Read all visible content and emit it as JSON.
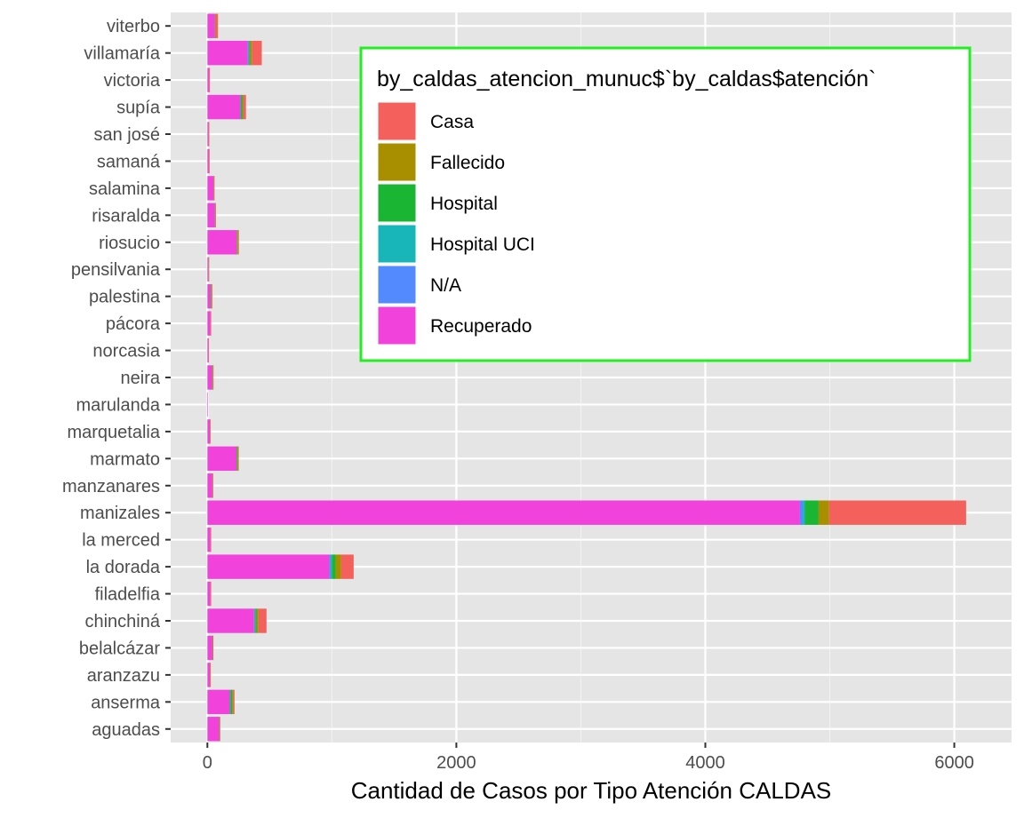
{
  "chart_data": {
    "type": "bar",
    "orientation": "horizontal",
    "stacked": true,
    "title": "",
    "xlabel": "Cantidad de Casos por Tipo Atención CALDAS",
    "ylabel": "",
    "xlim": [
      -295,
      6460
    ],
    "xticks": [
      0,
      2000,
      4000,
      6000
    ],
    "grid": true,
    "legend_position": "top-right",
    "legend_title": "by_caldas_atencion_munuc$`by_caldas$atención`",
    "categories": [
      "aguadas",
      "anserma",
      "aranzazu",
      "belalcázar",
      "chinchiná",
      "filadelfia",
      "la dorada",
      "la merced",
      "manizales",
      "manzanares",
      "marmato",
      "marquetalia",
      "marulanda",
      "neira",
      "norcasia",
      "pácora",
      "palestina",
      "pensilvania",
      "riosucio",
      "risaralda",
      "salamina",
      "samaná",
      "san josé",
      "supía",
      "victoria",
      "villamaría",
      "viterbo"
    ],
    "series": [
      {
        "name": "Recuperado",
        "color": "#F143DC",
        "values": [
          95,
          180,
          20,
          40,
          375,
          25,
          980,
          25,
          4760,
          40,
          235,
          20,
          2,
          38,
          8,
          25,
          28,
          10,
          235,
          60,
          50,
          12,
          10,
          265,
          15,
          325,
          60
        ]
      },
      {
        "name": "N/A",
        "color": "#538BFF",
        "values": [
          0,
          0,
          0,
          0,
          5,
          0,
          10,
          0,
          25,
          0,
          0,
          0,
          0,
          0,
          0,
          0,
          0,
          0,
          0,
          0,
          0,
          0,
          0,
          2,
          0,
          5,
          0
        ]
      },
      {
        "name": "Hospital UCI",
        "color": "#19B6B9",
        "values": [
          0,
          5,
          0,
          0,
          5,
          0,
          10,
          0,
          15,
          0,
          0,
          0,
          0,
          0,
          0,
          0,
          0,
          0,
          0,
          0,
          0,
          0,
          0,
          3,
          0,
          5,
          0
        ]
      },
      {
        "name": "Hospital",
        "color": "#1AB532",
        "values": [
          2,
          15,
          0,
          2,
          12,
          0,
          30,
          0,
          110,
          1,
          8,
          0,
          0,
          3,
          0,
          0,
          4,
          0,
          5,
          2,
          1,
          0,
          0,
          10,
          0,
          10,
          2
        ]
      },
      {
        "name": "Fallecido",
        "color": "#A88F00",
        "values": [
          2,
          8,
          2,
          2,
          13,
          1,
          45,
          1,
          85,
          1,
          5,
          1,
          0,
          4,
          0,
          1,
          4,
          1,
          5,
          2,
          2,
          1,
          1,
          10,
          1,
          12,
          3
        ]
      },
      {
        "name": "Casa",
        "color": "#F4615C",
        "values": [
          1,
          10,
          5,
          3,
          65,
          1,
          100,
          1,
          1100,
          2,
          4,
          4,
          0,
          2,
          2,
          2,
          3,
          0,
          8,
          2,
          2,
          2,
          1,
          20,
          2,
          80,
          20
        ]
      }
    ]
  }
}
